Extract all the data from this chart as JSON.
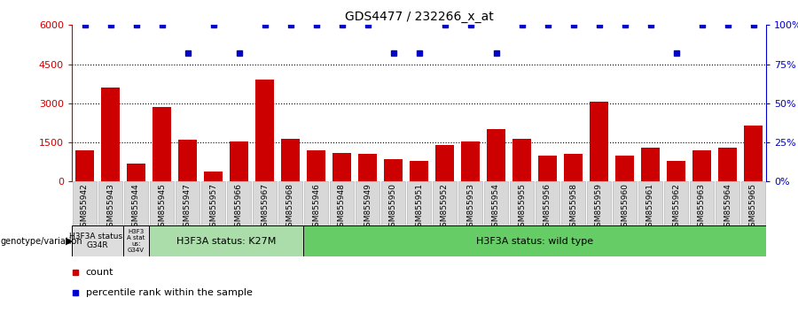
{
  "title": "GDS4477 / 232266_x_at",
  "samples": [
    "GSM855942",
    "GSM855943",
    "GSM855944",
    "GSM855945",
    "GSM855947",
    "GSM855957",
    "GSM855966",
    "GSM855967",
    "GSM855968",
    "GSM855946",
    "GSM855948",
    "GSM855949",
    "GSM855950",
    "GSM855951",
    "GSM855952",
    "GSM855953",
    "GSM855954",
    "GSM855955",
    "GSM855956",
    "GSM855958",
    "GSM855959",
    "GSM855960",
    "GSM855961",
    "GSM855962",
    "GSM855963",
    "GSM855964",
    "GSM855965"
  ],
  "counts": [
    1200,
    3600,
    700,
    2850,
    1600,
    400,
    1550,
    3900,
    1650,
    1200,
    1100,
    1050,
    850,
    800,
    1400,
    1550,
    2000,
    1650,
    1000,
    1050,
    3050,
    1000,
    1300,
    800,
    1200,
    1300,
    2150
  ],
  "percentiles": [
    100,
    100,
    100,
    100,
    82,
    100,
    82,
    100,
    100,
    100,
    100,
    100,
    82,
    82,
    100,
    100,
    82,
    100,
    100,
    100,
    100,
    100,
    100,
    82,
    100,
    100,
    100
  ],
  "bar_color": "#cc0000",
  "dot_color": "#0000cc",
  "ylim_left": [
    0,
    6000
  ],
  "ylim_right": [
    0,
    100
  ],
  "yticks_left": [
    0,
    1500,
    3000,
    4500,
    6000
  ],
  "yticks_right": [
    0,
    25,
    50,
    75,
    100
  ],
  "groups": [
    {
      "label": "H3F3A status:\nG34R",
      "start": 0,
      "end": 2,
      "color": "#dddddd"
    },
    {
      "label": "H3F3\nA stat\nus:\nG34V",
      "start": 2,
      "end": 3,
      "color": "#dddddd"
    },
    {
      "label": "H3F3A status: K27M",
      "start": 3,
      "end": 9,
      "color": "#aaddaa"
    },
    {
      "label": "H3F3A status: wild type",
      "start": 9,
      "end": 27,
      "color": "#66cc66"
    }
  ],
  "genotype_label": "genotype/variation",
  "legend_count_label": "count",
  "legend_pct_label": "percentile rank within the sample",
  "xtick_bg": "#d8d8d8"
}
